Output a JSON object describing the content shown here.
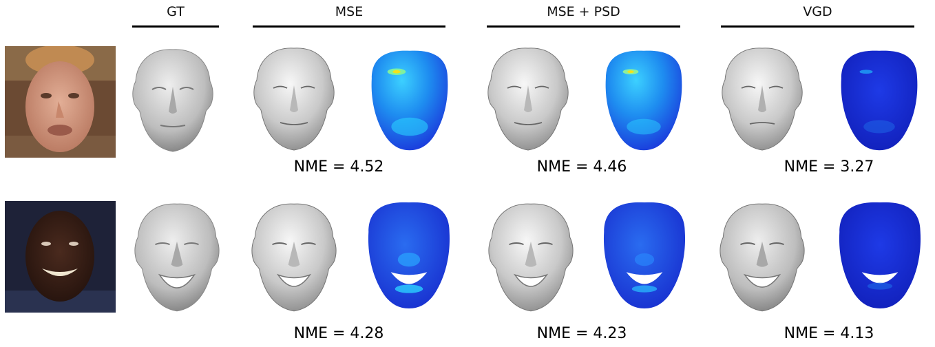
{
  "columns": {
    "gt": "GT",
    "mse": "MSE",
    "mse_psd": "MSE + PSD",
    "vgd": "VGD"
  },
  "rows": [
    {
      "nme": {
        "mse": "NME = 4.52",
        "mse_psd": "NME = 4.46",
        "vgd": "NME = 3.27"
      }
    },
    {
      "nme": {
        "mse": "NME = 4.28",
        "mse_psd": "NME = 4.23",
        "vgd": "NME = 4.13"
      }
    }
  ],
  "colors": {
    "photo1_bg": "#6b4a33",
    "photo1_skin": "#d69c82",
    "photo2_bg": "#1e2238",
    "photo2_skin": "#3a2018",
    "errmap_low": "#1a2bd8",
    "errmap_mid": "#1fb6ff",
    "errmap_high": "#f4e21a"
  }
}
